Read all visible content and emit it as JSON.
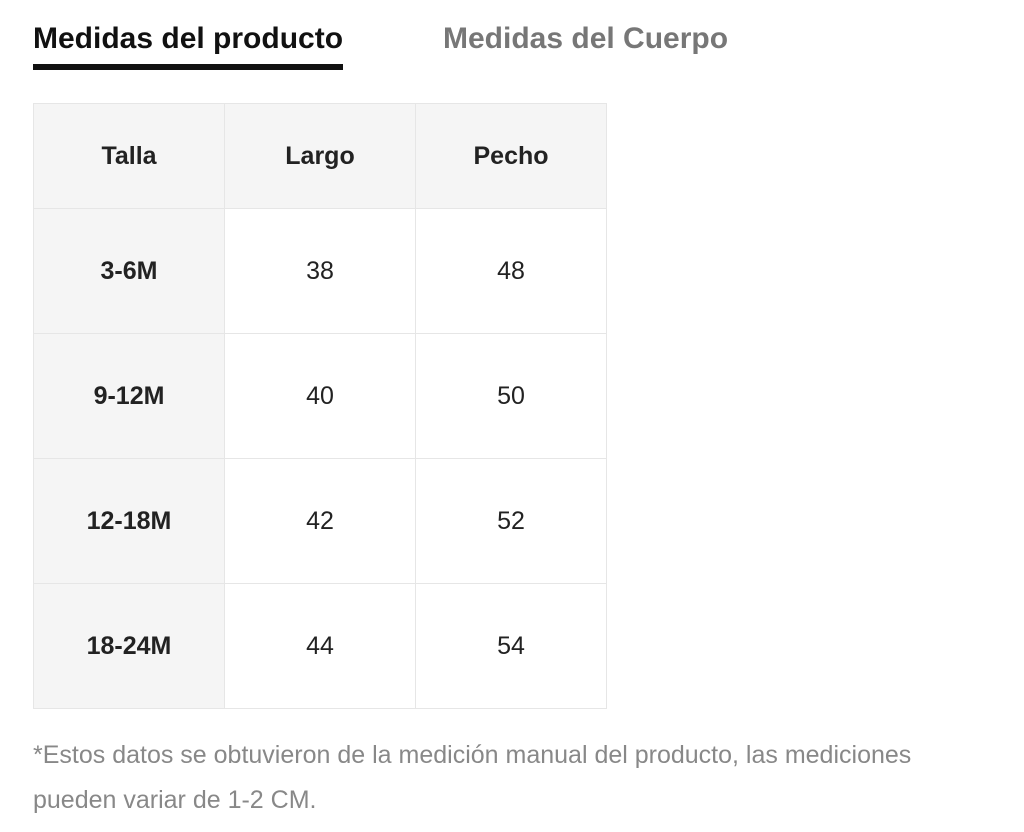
{
  "tabs": {
    "active": "Medidas del producto",
    "inactive": "Medidas del Cuerpo"
  },
  "table": {
    "header": [
      "Talla",
      "Largo",
      "Pecho"
    ],
    "rows": [
      [
        "3-6M",
        38,
        48
      ],
      [
        "9-12M",
        40,
        50
      ],
      [
        "12-18M",
        42,
        52
      ],
      [
        "18-24M",
        44,
        54
      ]
    ]
  },
  "footnote": "*Estos datos se obtuvieron de la medición manual del producto, las mediciones pueden variar de 1-2 CM."
}
